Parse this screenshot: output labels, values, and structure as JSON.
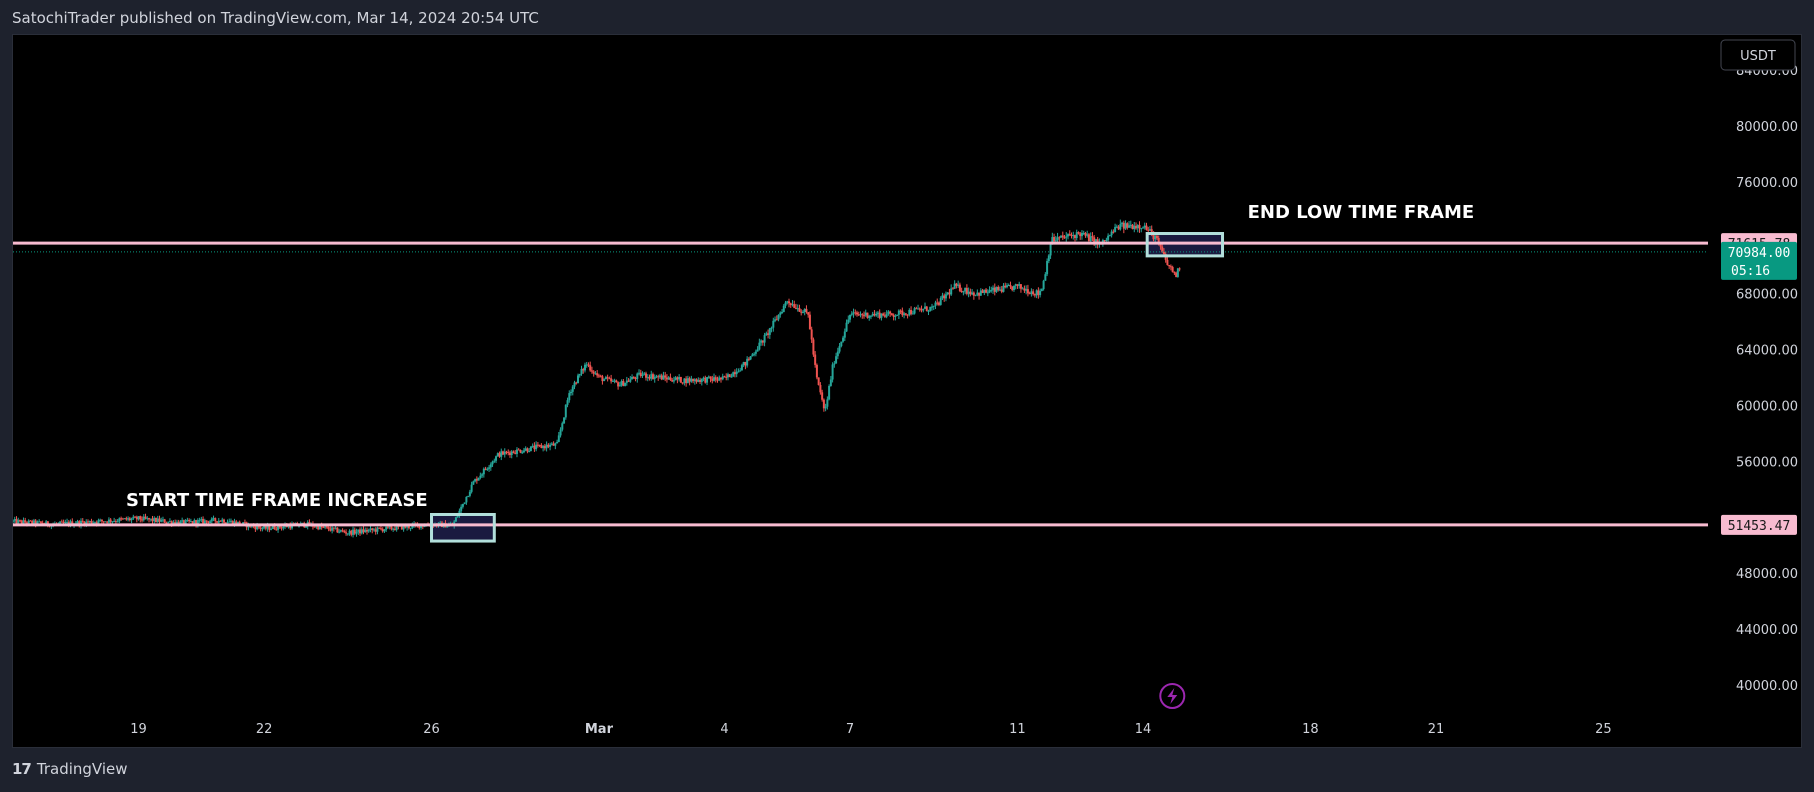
{
  "header": {
    "published_line": "SatochiTrader published on TradingView.com, Mar 14, 2024 20:54 UTC"
  },
  "footer": {
    "logo_glyph": "𝟭𝟳",
    "brand": "TradingView"
  },
  "currency_button": "USDT",
  "colors": {
    "background": "#000000",
    "up": "#26a69a",
    "down": "#ef5350",
    "level_line": "#f8bbd0",
    "box_border": "#b2dfdb",
    "box_fill": "#1a1a40",
    "last_price_bg": "#089981",
    "level_badge_bg": "#f8bbd0",
    "lightning": "#9c27b0"
  },
  "chart_data": {
    "type": "candlestick",
    "ylim": [
      38000,
      86500
    ],
    "y_ticks": [
      "84000.00",
      "80000.00",
      "76000.00",
      "68000.00",
      "64000.00",
      "60000.00",
      "56000.00",
      "48000.00",
      "44000.00",
      "40000.00"
    ],
    "y_tick_values": [
      84000,
      80000,
      76000,
      68000,
      64000,
      60000,
      56000,
      48000,
      44000,
      40000
    ],
    "x_range_days": [
      16.0,
      56.5
    ],
    "x_ticks": [
      {
        "label": "19",
        "day": 19
      },
      {
        "label": "22",
        "day": 22
      },
      {
        "label": "26",
        "day": 26
      },
      {
        "label": "Mar",
        "day": 30
      },
      {
        "label": "4",
        "day": 33
      },
      {
        "label": "7",
        "day": 36
      },
      {
        "label": "11",
        "day": 40
      },
      {
        "label": "14",
        "day": 43
      },
      {
        "label": "18",
        "day": 47
      },
      {
        "label": "21",
        "day": 50
      },
      {
        "label": "25",
        "day": 54
      }
    ],
    "price_path": [
      [
        16.0,
        51700
      ],
      [
        17.0,
        51500
      ],
      [
        18.0,
        51700
      ],
      [
        19.0,
        51900
      ],
      [
        20.0,
        51600
      ],
      [
        21.0,
        51800
      ],
      [
        22.0,
        51200
      ],
      [
        23.0,
        51500
      ],
      [
        24.0,
        50900
      ],
      [
        25.0,
        51200
      ],
      [
        26.0,
        51500
      ],
      [
        26.5,
        51400
      ],
      [
        27.0,
        54500
      ],
      [
        27.6,
        56500
      ],
      [
        28.5,
        57000
      ],
      [
        29.0,
        57200
      ],
      [
        29.3,
        61000
      ],
      [
        29.7,
        63000
      ],
      [
        30.0,
        62000
      ],
      [
        30.5,
        61500
      ],
      [
        31.0,
        62200
      ],
      [
        32.0,
        61800
      ],
      [
        33.0,
        61900
      ],
      [
        33.5,
        63000
      ],
      [
        34.0,
        65000
      ],
      [
        34.5,
        67500
      ],
      [
        35.0,
        66500
      ],
      [
        35.2,
        62000
      ],
      [
        35.4,
        59500
      ],
      [
        35.6,
        63000
      ],
      [
        36.0,
        66500
      ],
      [
        37.0,
        66500
      ],
      [
        38.0,
        67000
      ],
      [
        38.5,
        68500
      ],
      [
        39.0,
        68000
      ],
      [
        40.0,
        68500
      ],
      [
        40.5,
        68000
      ],
      [
        40.6,
        68500
      ],
      [
        40.8,
        71800
      ],
      [
        41.5,
        72300
      ],
      [
        42.0,
        71500
      ],
      [
        42.4,
        72800
      ],
      [
        43.0,
        72900
      ],
      [
        43.3,
        72000
      ],
      [
        43.6,
        70000
      ],
      [
        43.8,
        69300
      ],
      [
        43.9,
        70200
      ]
    ],
    "horizontal_levels": [
      {
        "label": "71615.78",
        "value": 71615.78
      },
      {
        "label": "51453.47",
        "value": 51453.47
      }
    ],
    "last_price": {
      "label": "70984.00",
      "value": 70984.0,
      "countdown": "05:16"
    },
    "annotations": [
      {
        "text": "START TIME FRAME INCREASE",
        "day": 18.7,
        "price": 52800
      },
      {
        "text": "END LOW TIME FRAME",
        "day": 45.5,
        "price": 73400
      }
    ],
    "boxes": [
      {
        "day_start": 26.0,
        "day_end": 27.5,
        "price_top": 52200,
        "price_bottom": 50300
      },
      {
        "day_start": 43.1,
        "day_end": 44.9,
        "price_top": 72300,
        "price_bottom": 70700
      }
    ]
  }
}
